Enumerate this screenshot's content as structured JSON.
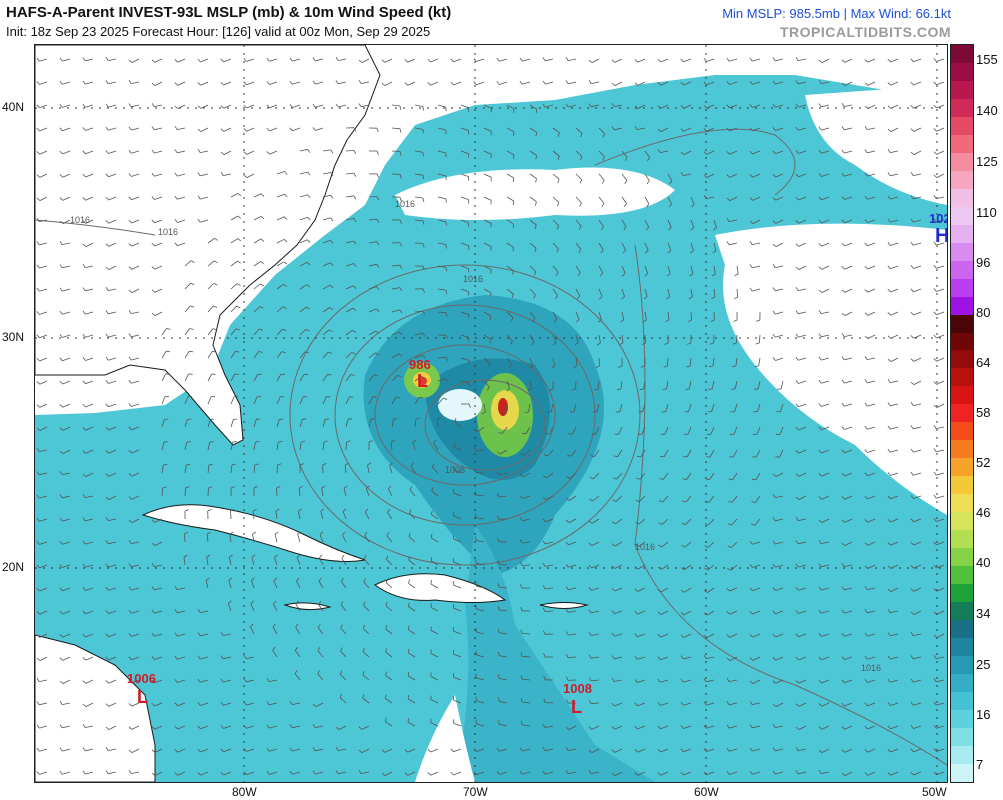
{
  "header": {
    "title": "HAFS-A-Parent INVEST-93L MSLP (mb) & 10m Wind Speed (kt)",
    "subtitle": "Init: 18z Sep 23 2025   Forecast Hour: [126]   valid at 00z Mon, Sep 29 2025",
    "stats": "Min MSLP: 985.5mb | Max Wind: 66.1kt",
    "source": "TROPICALTIDBITS.COM"
  },
  "axes": {
    "lat_labels": [
      "40N",
      "30N",
      "20N"
    ],
    "lon_labels": [
      "80W",
      "70W",
      "60W",
      "50W"
    ]
  },
  "systems": [
    {
      "type": "L",
      "pressure": "986",
      "color": "#d11a2a"
    },
    {
      "type": "L",
      "pressure": "1008",
      "color": "#d11a2a"
    },
    {
      "type": "L",
      "pressure": "1006",
      "color": "#d11a2a"
    },
    {
      "type": "H",
      "pressure": "102",
      "color": "#1c2fd0"
    }
  ],
  "isobar_labels": [
    "1016",
    "1016",
    "1016",
    "1008",
    "1016",
    "1016",
    "1016"
  ],
  "colorbar": {
    "labels": [
      "155",
      "140",
      "125",
      "110",
      "96",
      "80",
      "64",
      "58",
      "52",
      "46",
      "40",
      "34",
      "25",
      "16",
      "7"
    ],
    "colors": [
      "#7d0a36",
      "#9c0d45",
      "#b8174f",
      "#d02a58",
      "#e44a66",
      "#f06a7c",
      "#f58ca0",
      "#f7a6bf",
      "#f2bfe6",
      "#ebc7f2",
      "#e4b0f0",
      "#d98cef",
      "#cc66ee",
      "#bb3ff0",
      "#9e12e6",
      "#4a0606",
      "#6e0808",
      "#930b0b",
      "#b80f0f",
      "#d81414",
      "#ef2323",
      "#f44d1c",
      "#f57a20",
      "#f6a329",
      "#f3c93a",
      "#eedf57",
      "#d7e45b",
      "#b2df52",
      "#86d247",
      "#4fbf3c",
      "#1ea23a",
      "#137d5a",
      "#186f86",
      "#1e84a0",
      "#2699b4",
      "#33aec6",
      "#45c1d4",
      "#5ed1de",
      "#7fdfe7",
      "#a8ebf0",
      "#cdf5f7"
    ]
  },
  "legend_colors": {
    "land": "#ffffff",
    "wind_low": "#4dc7d6",
    "wind_mid": "#2a9fb6",
    "wind_high": "#1b7f9a",
    "core_green": "#6cc24a",
    "core_red": "#d11a2a",
    "isobar": "#6a6a6a",
    "barb": "#555555"
  }
}
